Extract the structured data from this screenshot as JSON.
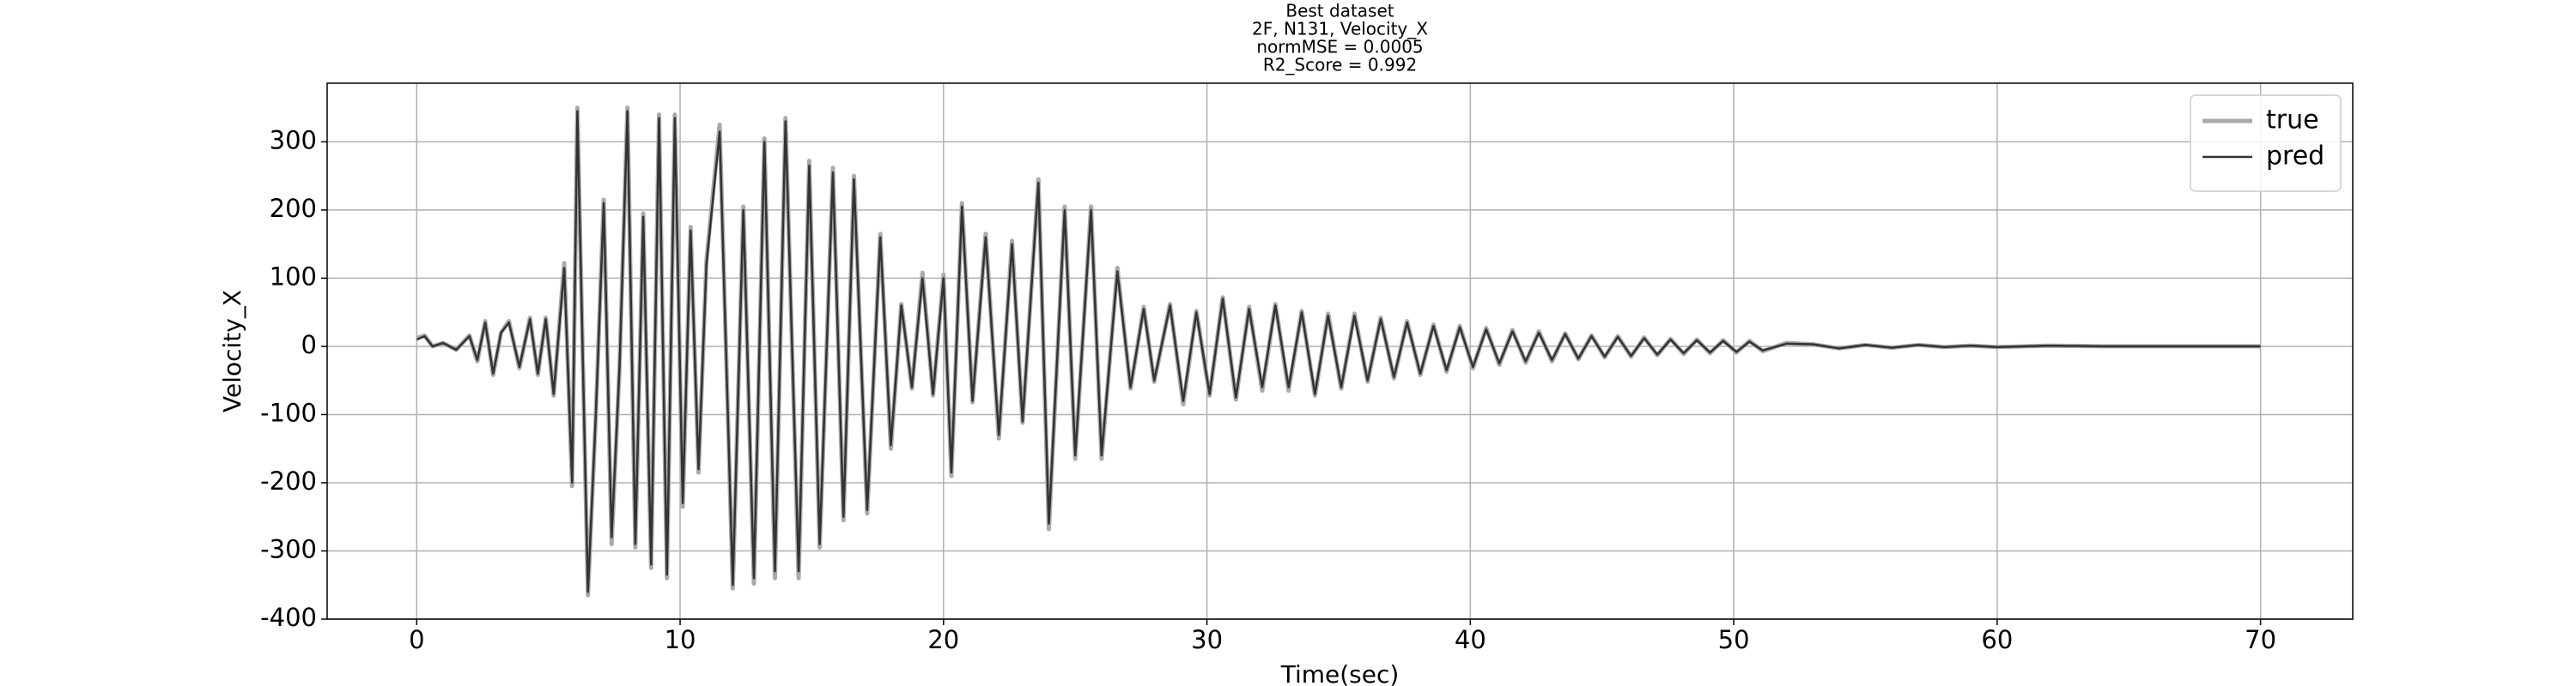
{
  "chart_data": {
    "type": "line",
    "title": [
      "Best dataset",
      "2F, N131, Velocity_X",
      "normMSE = 0.0005",
      "R2_Score = 0.992"
    ],
    "xlabel": "Time(sec)",
    "ylabel": "Velocity_X",
    "x": [
      0,
      0.3,
      0.6,
      1,
      1.5,
      2,
      2.3,
      2.6,
      2.9,
      3.2,
      3.5,
      3.9,
      4.3,
      4.6,
      4.9,
      5.2,
      5.6,
      5.9,
      6.1,
      6.5,
      6.8,
      7.1,
      7.4,
      7.7,
      8.0,
      8.3,
      8.6,
      8.9,
      9.2,
      9.5,
      9.8,
      10.1,
      10.4,
      10.7,
      11.0,
      11.5,
      12.0,
      12.4,
      12.8,
      13.2,
      13.6,
      14.0,
      14.5,
      14.9,
      15.3,
      15.8,
      16.2,
      16.6,
      17.1,
      17.6,
      18.0,
      18.4,
      18.8,
      19.2,
      19.6,
      20.0,
      20.3,
      20.7,
      21.1,
      21.6,
      22.1,
      22.6,
      23.0,
      23.6,
      24.0,
      24.6,
      25.0,
      25.6,
      26.0,
      26.6,
      27.1,
      27.6,
      28.0,
      28.6,
      29.1,
      29.6,
      30.1,
      30.6,
      31.1,
      31.6,
      32.1,
      32.6,
      33.1,
      33.6,
      34.1,
      34.6,
      35.1,
      35.6,
      36.1,
      36.6,
      37.1,
      37.6,
      38.1,
      38.6,
      39.1,
      39.6,
      40.1,
      40.6,
      41.1,
      41.6,
      42.1,
      42.6,
      43.1,
      43.6,
      44.1,
      44.6,
      45.1,
      45.6,
      46.1,
      46.6,
      47.1,
      47.6,
      48.1,
      48.6,
      49.1,
      49.6,
      50.1,
      50.6,
      51.1,
      52,
      53,
      54,
      55,
      56,
      57,
      58,
      59,
      60,
      62,
      64,
      66,
      68,
      70
    ],
    "series": [
      {
        "name": "true",
        "color": "#aaaaaa",
        "width": 5,
        "values": [
          12,
          16,
          0,
          5,
          -5,
          16,
          -22,
          37,
          -42,
          20,
          37,
          -32,
          42,
          -42,
          42,
          -72,
          122,
          -205,
          350,
          -365,
          -100,
          215,
          -290,
          -30,
          350,
          -295,
          195,
          -325,
          340,
          -340,
          340,
          -235,
          175,
          -185,
          125,
          325,
          -355,
          205,
          -348,
          305,
          -340,
          335,
          -340,
          272,
          -295,
          262,
          -255,
          250,
          -245,
          165,
          -150,
          62,
          -62,
          108,
          -72,
          105,
          -190,
          210,
          -82,
          165,
          -135,
          155,
          -112,
          245,
          -268,
          205,
          -165,
          205,
          -165,
          115,
          -62,
          58,
          -52,
          62,
          -85,
          52,
          -72,
          72,
          -78,
          58,
          -65,
          62,
          -65,
          52,
          -72,
          48,
          -62,
          48,
          -52,
          42,
          -47,
          37,
          -42,
          32,
          -37,
          30,
          -32,
          27,
          -27,
          24,
          -24,
          22,
          -22,
          19,
          -19,
          16,
          -16,
          15,
          -15,
          13,
          -13,
          11,
          -11,
          10,
          -10,
          9,
          -9,
          8,
          -7,
          5,
          3,
          -3,
          2,
          -2,
          2,
          -1,
          1,
          -1,
          1,
          0,
          0,
          0,
          0
        ]
      },
      {
        "name": "pred",
        "color": "#333333",
        "width": 2.5,
        "values": [
          10,
          15,
          0,
          5,
          -5,
          15,
          -20,
          35,
          -40,
          20,
          35,
          -30,
          40,
          -40,
          40,
          -70,
          115,
          -200,
          345,
          -360,
          -100,
          210,
          -280,
          -30,
          345,
          -290,
          190,
          -320,
          335,
          -335,
          335,
          -230,
          170,
          -180,
          120,
          315,
          -350,
          200,
          -340,
          300,
          -330,
          330,
          -330,
          265,
          -290,
          255,
          -250,
          245,
          -240,
          160,
          -145,
          60,
          -60,
          100,
          -70,
          100,
          -185,
          205,
          -80,
          160,
          -130,
          150,
          -110,
          240,
          -260,
          200,
          -160,
          200,
          -160,
          110,
          -60,
          55,
          -50,
          60,
          -80,
          50,
          -70,
          70,
          -75,
          55,
          -60,
          60,
          -60,
          50,
          -70,
          45,
          -60,
          45,
          -50,
          40,
          -45,
          35,
          -40,
          30,
          -35,
          28,
          -30,
          25,
          -25,
          22,
          -22,
          20,
          -20,
          18,
          -18,
          15,
          -15,
          14,
          -14,
          12,
          -12,
          10,
          -10,
          9,
          -9,
          8,
          -8,
          7,
          -6,
          4,
          3,
          -3,
          2,
          -2,
          2,
          -1,
          1,
          -1,
          1,
          0,
          0,
          0,
          0
        ]
      }
    ],
    "xlim": [
      -3.4,
      73.5
    ],
    "ylim": [
      -400,
      386
    ],
    "xticks": [
      0,
      10,
      20,
      30,
      40,
      50,
      60,
      70
    ],
    "yticks": [
      -400,
      -300,
      -200,
      -100,
      0,
      100,
      200,
      300
    ],
    "grid": true,
    "legend": "upper right"
  }
}
